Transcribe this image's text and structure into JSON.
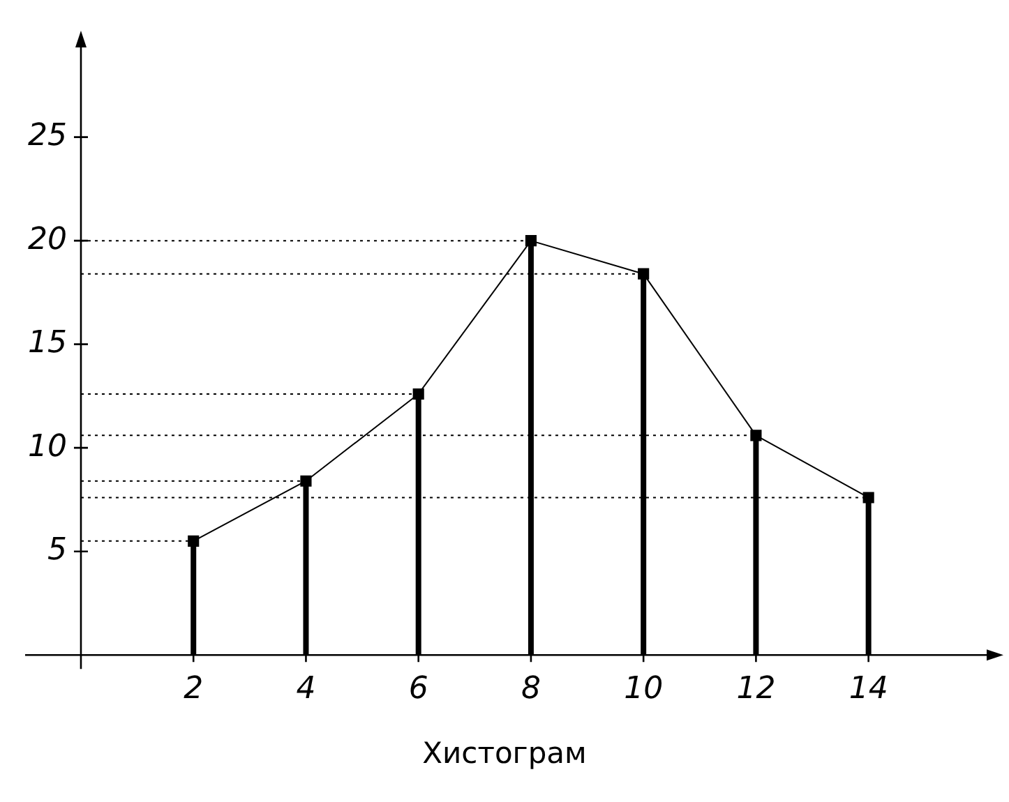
{
  "chart_data": {
    "type": "lollipop",
    "xlabel": "Хистограм",
    "x": [
      2,
      4,
      6,
      8,
      10,
      12,
      14
    ],
    "series": [
      {
        "color": "#000000",
        "values": [
          5.5,
          8.4,
          12.6,
          20,
          18.4,
          10.6,
          7.6
        ],
        "marker": "square"
      },
      {
        "type": "line",
        "color": "#000000",
        "values": [
          5.5,
          8.4,
          12.6,
          20,
          18.4,
          10.6,
          7.6
        ]
      }
    ],
    "xlim": [
      0,
      16.2
    ],
    "xticks": [
      2,
      4,
      6,
      8,
      10,
      12,
      14
    ],
    "ylim": [
      0,
      29.6
    ],
    "yticks": [
      5,
      10,
      15,
      20,
      25
    ],
    "ref_lines": [
      {
        "axis": "y",
        "value": 5.5,
        "line_style": "dotted"
      },
      {
        "axis": "y",
        "value": 8.4,
        "line_style": "dotted"
      },
      {
        "axis": "y",
        "value": 12.6,
        "line_style": "dotted"
      },
      {
        "axis": "y",
        "value": 20,
        "line_style": "dotted"
      },
      {
        "axis": "y",
        "value": 18.4,
        "line_style": "dotted"
      },
      {
        "axis": "y",
        "value": 10.6,
        "line_style": "dotted"
      },
      {
        "axis": "y",
        "value": 7.6,
        "line_style": "dotted"
      }
    ],
    "grid": false,
    "legend": false
  }
}
